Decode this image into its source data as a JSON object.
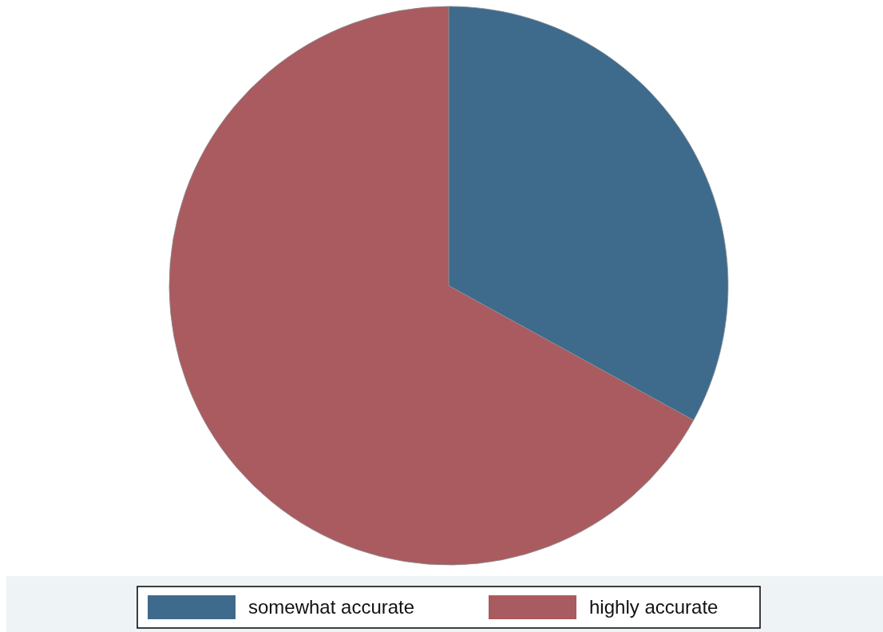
{
  "chart_data": {
    "type": "pie",
    "categories": [
      "somewhat accurate",
      "highly accurate"
    ],
    "values": [
      33,
      67
    ],
    "colors": [
      "#3e6a8c",
      "#a95b5f"
    ],
    "legend": "bottom"
  }
}
